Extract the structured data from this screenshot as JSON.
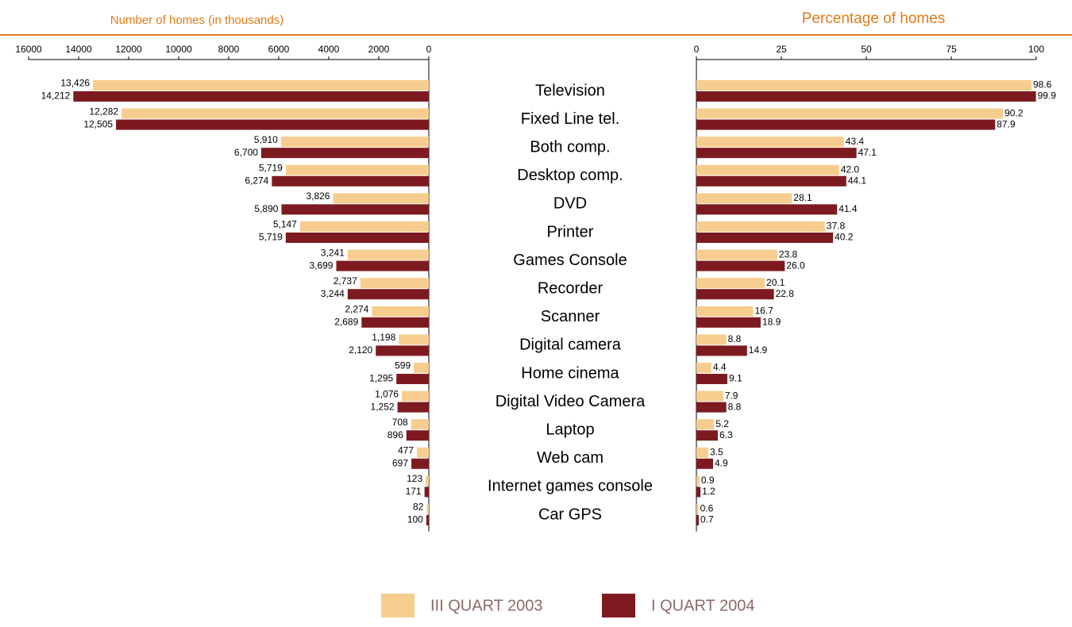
{
  "chart_data": [
    {
      "type": "bar",
      "orientation": "horizontal",
      "x_reversed": true,
      "title": "Number of homes (in thousands)",
      "categories": [
        "Television",
        "Fixed  Line tel.",
        "Both comp.",
        "Desktop comp.",
        "DVD",
        "Printer",
        "Games Console",
        "Recorder",
        "Scanner",
        "Digital camera",
        "Home cinema",
        "Digital Video Camera",
        "Laptop",
        "Web cam",
        "Internet games console",
        "Car GPS"
      ],
      "xlim": [
        0,
        16000
      ],
      "xticks": [
        16000,
        14000,
        12000,
        10000,
        8000,
        6000,
        4000,
        2000,
        0
      ],
      "series": [
        {
          "name": "III QUART 2003",
          "color": "#f7cd8f",
          "values": [
            13426,
            12282,
            5910,
            5719,
            3826,
            5147,
            3241,
            2737,
            2274,
            1198,
            599,
            1076,
            708,
            477,
            123,
            82
          ],
          "value_labels": [
            "13,426",
            "12,282",
            "5,910",
            "5,719",
            "3,826",
            "5,147",
            "3,241",
            "2,737",
            "2,274",
            "1,198",
            "599",
            "1,076",
            "708",
            "477",
            "123",
            "82"
          ]
        },
        {
          "name": "I QUART 2004",
          "color": "#7d1a20",
          "values": [
            14212,
            12505,
            6700,
            6274,
            5890,
            5719,
            3699,
            3244,
            2689,
            2120,
            1295,
            1252,
            896,
            697,
            171,
            100
          ],
          "value_labels": [
            "14,212",
            "12,505",
            "6,700",
            "6,274",
            "5,890",
            "5,719",
            "3,699",
            "3,244",
            "2,689",
            "2,120",
            "1,295",
            "1,252",
            "896",
            "697",
            "171",
            "100"
          ]
        }
      ]
    },
    {
      "type": "bar",
      "orientation": "horizontal",
      "x_reversed": false,
      "title": "Percentage of homes",
      "xlim": [
        0,
        100
      ],
      "xticks": [
        0,
        25,
        50,
        75,
        100
      ],
      "series": [
        {
          "name": "III QUART 2003",
          "color": "#f7cd8f",
          "values": [
            98.6,
            90.2,
            43.4,
            42.0,
            28.1,
            37.8,
            23.8,
            20.1,
            16.7,
            8.8,
            4.4,
            7.9,
            5.2,
            3.5,
            0.9,
            0.6
          ],
          "value_labels": [
            "98.6",
            "90.2",
            "43.4",
            "42.0",
            "28.1",
            "37.8",
            "23.8",
            "20.1",
            "16.7",
            "8.8",
            "4.4",
            "7.9",
            "5.2",
            "3.5",
            "0.9",
            "0.6"
          ]
        },
        {
          "name": "I QUART 2004",
          "color": "#7d1a20",
          "values": [
            99.9,
            87.9,
            47.1,
            44.1,
            41.4,
            40.2,
            26.0,
            22.8,
            18.9,
            14.9,
            9.1,
            8.8,
            6.3,
            4.9,
            1.2,
            0.7
          ],
          "value_labels": [
            "99.9",
            "87.9",
            "47.1",
            "44.1",
            "41.4",
            "40.2",
            "26.0",
            "22.8",
            "18.9",
            "14.9",
            "9.1",
            "8.8",
            "6.3",
            "4.9",
            "1.2",
            "0.7"
          ]
        }
      ]
    }
  ]
}
